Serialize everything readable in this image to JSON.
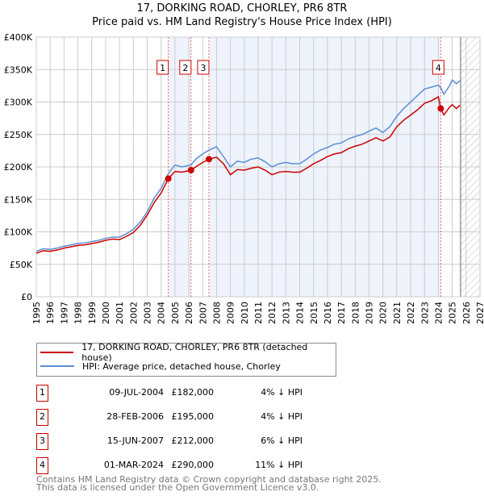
{
  "chart_data": {
    "type": "line",
    "title": "17, DORKING ROAD, CHORLEY, PR6 8TR",
    "subtitle": "Price paid vs. HM Land Registry's House Price Index (HPI)",
    "xlim": [
      1995,
      2027
    ],
    "ylim": [
      0,
      400000
    ],
    "yticks": [
      {
        "v": 0,
        "l": "£0"
      },
      {
        "v": 50000,
        "l": "£50K"
      },
      {
        "v": 100000,
        "l": "£100K"
      },
      {
        "v": 150000,
        "l": "£150K"
      },
      {
        "v": 200000,
        "l": "£200K"
      },
      {
        "v": 250000,
        "l": "£250K"
      },
      {
        "v": 300000,
        "l": "£300K"
      },
      {
        "v": 350000,
        "l": "£350K"
      },
      {
        "v": 400000,
        "l": "£400K"
      }
    ],
    "xticks": [
      "1995",
      "1996",
      "1997",
      "1998",
      "1999",
      "2000",
      "2001",
      "2002",
      "2003",
      "2004",
      "2005",
      "2006",
      "2007",
      "2008",
      "2009",
      "2010",
      "2011",
      "2012",
      "2013",
      "2014",
      "2015",
      "2016",
      "2017",
      "2018",
      "2019",
      "2020",
      "2021",
      "2022",
      "2023",
      "2024",
      "2025",
      "2026",
      "2027"
    ],
    "grid": true,
    "forecast_from": 2025.6,
    "series": [
      {
        "name": "17, DORKING ROAD, CHORLEY, PR6 8TR (detached house)",
        "color": "#cc0000",
        "x": [
          1995,
          1995.5,
          1996,
          1996.5,
          1997,
          1997.5,
          1998,
          1998.5,
          1999,
          1999.5,
          2000,
          2000.5,
          2001,
          2001.5,
          2002,
          2002.5,
          2003,
          2003.5,
          2004,
          2004.53,
          2005,
          2005.5,
          2006.16,
          2006.5,
          2007,
          2007.45,
          2008,
          2008.5,
          2009,
          2009.5,
          2010,
          2010.5,
          2011,
          2011.5,
          2012,
          2012.5,
          2013,
          2013.5,
          2014,
          2014.5,
          2015,
          2015.5,
          2016,
          2016.5,
          2017,
          2017.5,
          2018,
          2018.5,
          2019,
          2019.5,
          2020,
          2020.5,
          2021,
          2021.5,
          2022,
          2022.5,
          2023,
          2023.5,
          2024,
          2024.17,
          2024.4,
          2024.8,
          2025,
          2025.3,
          2025.55
        ],
        "y": [
          67000,
          71000,
          70000,
          72000,
          75000,
          77000,
          79000,
          80000,
          82000,
          84000,
          87000,
          89000,
          88000,
          93000,
          99000,
          110000,
          126000,
          145000,
          160000,
          182000,
          193000,
          192000,
          195000,
          200000,
          207000,
          212000,
          215000,
          205000,
          188000,
          196000,
          195000,
          198000,
          200000,
          195000,
          188000,
          192000,
          193000,
          192000,
          192000,
          198000,
          205000,
          210000,
          216000,
          220000,
          222000,
          228000,
          232000,
          235000,
          240000,
          245000,
          240000,
          246000,
          262000,
          272000,
          280000,
          288000,
          298000,
          302000,
          308000,
          290000,
          280000,
          292000,
          296000,
          290000,
          295000
        ]
      },
      {
        "name": "HPI: Average price, detached house, Chorley",
        "color": "#5b8fd4",
        "x": [
          1995,
          1995.5,
          1996,
          1996.5,
          1997,
          1997.5,
          1998,
          1998.5,
          1999,
          1999.5,
          2000,
          2000.5,
          2001,
          2001.5,
          2002,
          2002.5,
          2003,
          2003.5,
          2004,
          2004.53,
          2005,
          2005.5,
          2006.16,
          2006.5,
          2007,
          2007.45,
          2008,
          2008.5,
          2009,
          2009.5,
          2010,
          2010.5,
          2011,
          2011.5,
          2012,
          2012.5,
          2013,
          2013.5,
          2014,
          2014.5,
          2015,
          2015.5,
          2016,
          2016.5,
          2017,
          2017.5,
          2018,
          2018.5,
          2019,
          2019.5,
          2020,
          2020.5,
          2021,
          2021.5,
          2022,
          2022.5,
          2023,
          2023.5,
          2024,
          2024.17,
          2024.4,
          2024.8,
          2025,
          2025.3,
          2025.55
        ],
        "y": [
          70000,
          74000,
          73000,
          75000,
          78000,
          80000,
          82000,
          83000,
          85000,
          87000,
          90000,
          92000,
          92000,
          97000,
          104000,
          115000,
          131000,
          152000,
          167000,
          190000,
          203000,
          200000,
          203000,
          212000,
          220000,
          226000,
          231000,
          216000,
          200000,
          209000,
          207000,
          212000,
          214000,
          208000,
          200000,
          205000,
          207000,
          205000,
          205000,
          212000,
          220000,
          226000,
          230000,
          235000,
          237000,
          243000,
          247000,
          250000,
          255000,
          260000,
          253000,
          262000,
          278000,
          290000,
          300000,
          310000,
          320000,
          323000,
          326000,
          322000,
          312000,
          325000,
          334000,
          328000,
          333000
        ]
      }
    ],
    "sales": [
      {
        "n": "1",
        "x": 2004.52,
        "y": 182000,
        "date": "09-JUL-2004",
        "price": "£182,000",
        "hpi": "4% ↓ HPI"
      },
      {
        "n": "2",
        "x": 2006.16,
        "y": 195000,
        "date": "28-FEB-2006",
        "price": "£195,000",
        "hpi": "4% ↓ HPI"
      },
      {
        "n": "3",
        "x": 2007.45,
        "y": 212000,
        "date": "15-JUN-2007",
        "price": "£212,000",
        "hpi": "6% ↓ HPI"
      },
      {
        "n": "4",
        "x": 2024.17,
        "y": 290000,
        "date": "01-MAR-2024",
        "price": "£290,000",
        "hpi": "11% ↓ HPI"
      }
    ],
    "legend_placement": "below"
  },
  "legend": {
    "property": "17, DORKING ROAD, CHORLEY, PR6 8TR (detached house)",
    "hpi": "HPI: Average price, detached house, Chorley"
  },
  "footer": {
    "line1": "Contains HM Land Registry data © Crown copyright and database right 2025.",
    "line2": "This data is licensed under the Open Government Licence v3.0."
  }
}
